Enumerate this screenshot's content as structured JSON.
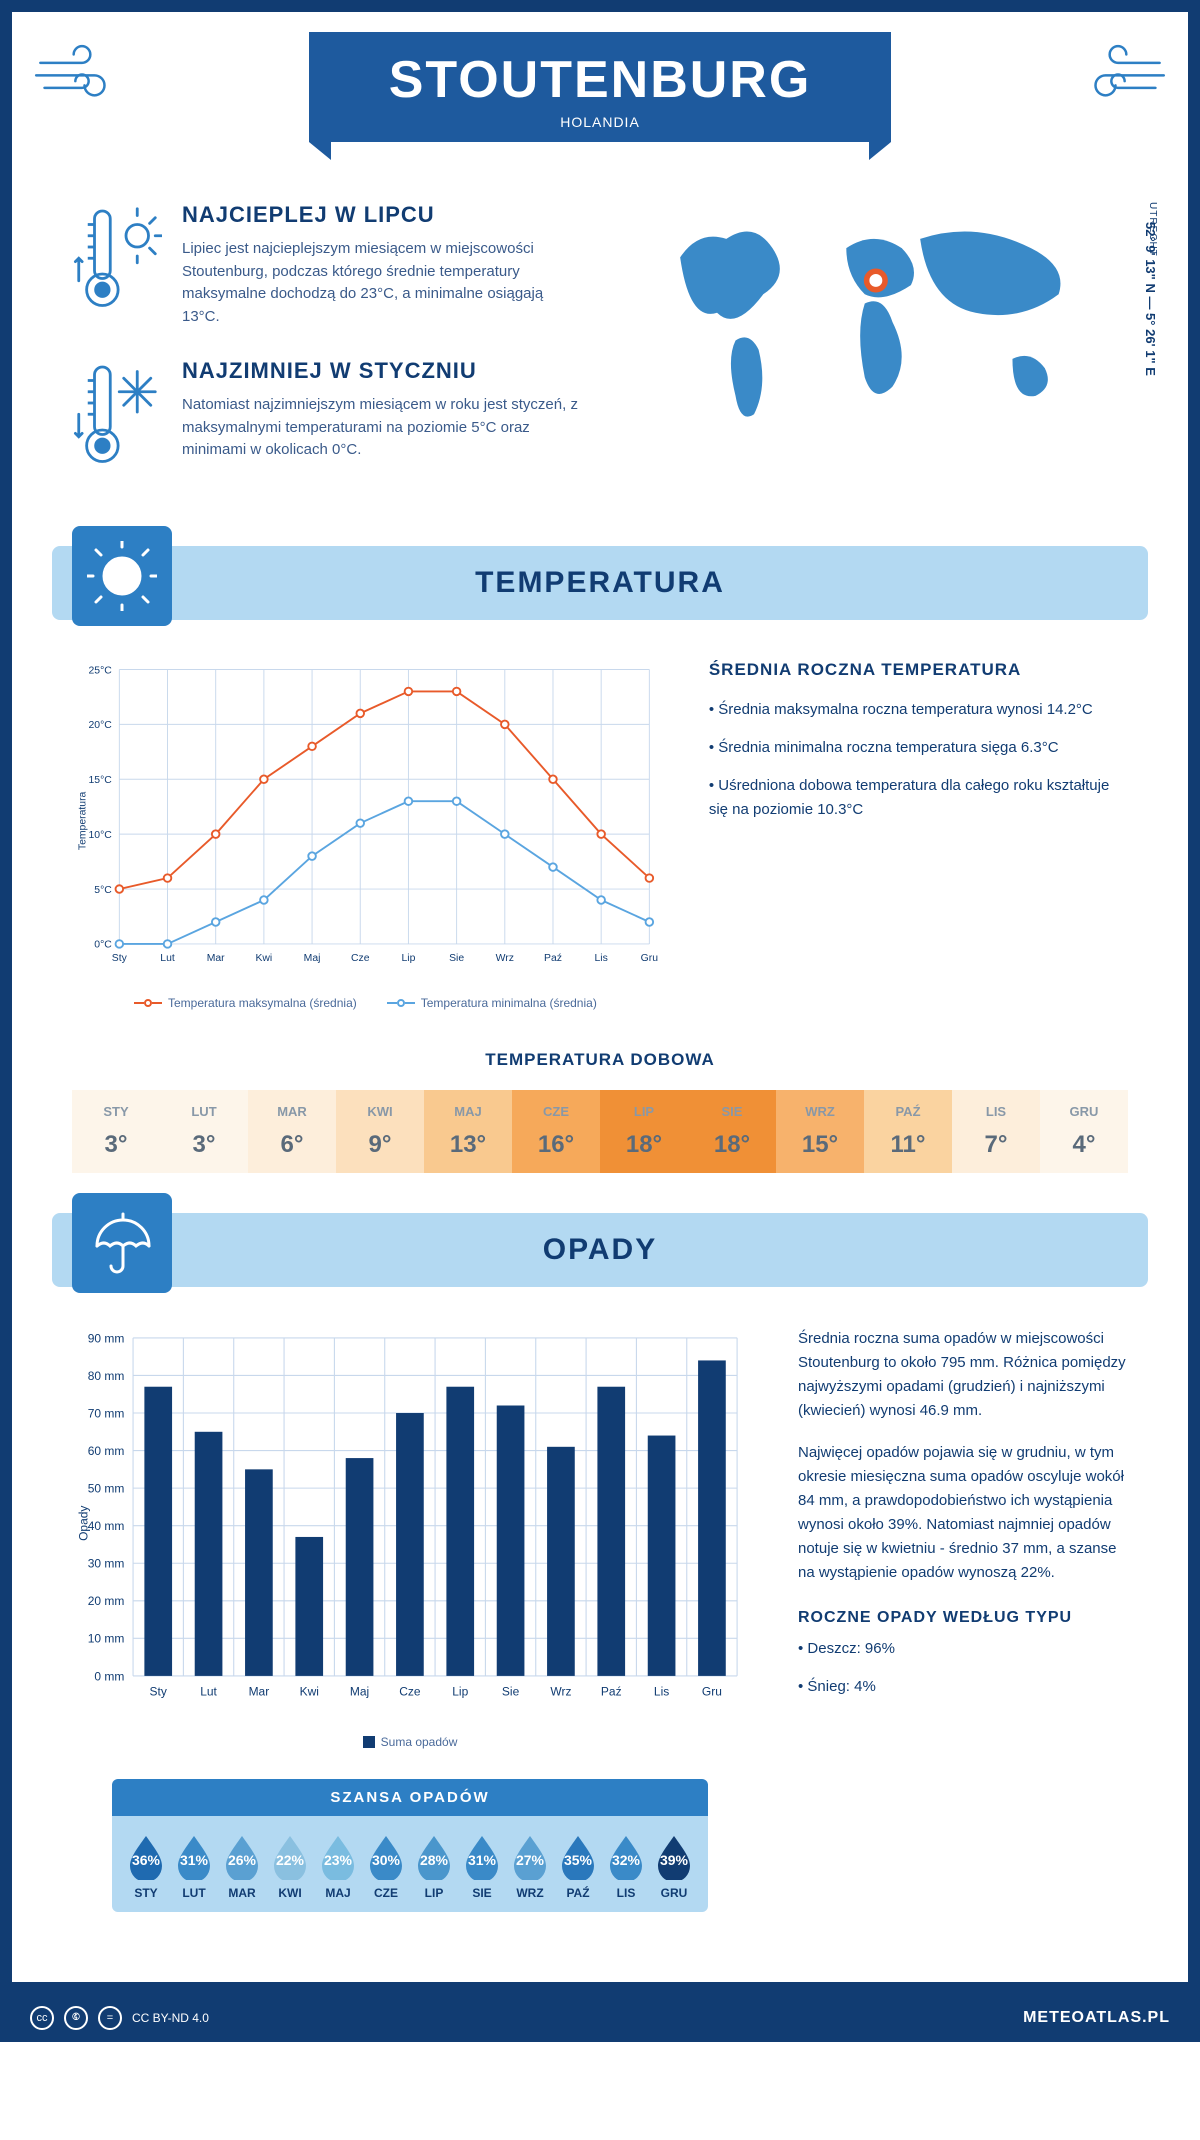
{
  "header": {
    "title": "STOUTENBURG",
    "country": "HOLANDIA",
    "coordinates": "52° 9' 13\" N — 5° 26' 1\" E",
    "region": "UTRECHT"
  },
  "facts": {
    "warm": {
      "title": "NAJCIEPLEJ W LIPCU",
      "text": "Lipiec jest najcieplejszym miesiącem w miejscowości Stoutenburg, podczas którego średnie temperatury maksymalne dochodzą do 23°C, a minimalne osiągają 13°C."
    },
    "cold": {
      "title": "NAJZIMNIEJ W STYCZNIU",
      "text": "Natomiast najzimniejszym miesiącem w roku jest styczeń, z maksymalnymi temperaturami na poziomie 5°C oraz minimami w okolicach 0°C."
    }
  },
  "temperature_section": {
    "title": "TEMPERATURA",
    "info_title": "ŚREDNIA ROCZNA TEMPERATURA",
    "info_points": [
      "• Średnia maksymalna roczna temperatura wynosi 14.2°C",
      "• Średnia minimalna roczna temperatura sięga 6.3°C",
      "• Uśredniona dobowa temperatura dla całego roku kształtuje się na poziomie 10.3°C"
    ],
    "chart": {
      "type": "line",
      "ylabel": "Temperatura",
      "months": [
        "Sty",
        "Lut",
        "Mar",
        "Kwi",
        "Maj",
        "Cze",
        "Lip",
        "Sie",
        "Wrz",
        "Paź",
        "Lis",
        "Gru"
      ],
      "ylim": [
        0,
        25
      ],
      "ytick_step": 5,
      "ytick_labels": [
        "0°C",
        "5°C",
        "10°C",
        "15°C",
        "20°C",
        "25°C"
      ],
      "series": [
        {
          "name": "Temperatura maksymalna (średnia)",
          "color": "#e85a2a",
          "values": [
            5,
            6,
            10,
            15,
            18,
            21,
            23,
            23,
            20,
            15,
            10,
            6
          ]
        },
        {
          "name": "Temperatura minimalna (średnia)",
          "color": "#5aa5e0",
          "values": [
            0,
            0,
            2,
            4,
            8,
            11,
            13,
            13,
            10,
            7,
            4,
            2
          ]
        }
      ],
      "grid_color": "#c8d8ec",
      "background": "#ffffff"
    },
    "daily": {
      "title": "TEMPERATURA DOBOWA",
      "months": [
        "STY",
        "LUT",
        "MAR",
        "KWI",
        "MAJ",
        "CZE",
        "LIP",
        "SIE",
        "WRZ",
        "PAŹ",
        "LIS",
        "GRU"
      ],
      "values": [
        "3°",
        "3°",
        "6°",
        "9°",
        "13°",
        "16°",
        "18°",
        "18°",
        "15°",
        "11°",
        "7°",
        "4°"
      ],
      "colors": [
        "#fdf5ea",
        "#fdf5ea",
        "#fdeedb",
        "#fce0bd",
        "#f9c98f",
        "#f6a95a",
        "#f09036",
        "#f09036",
        "#f7b26c",
        "#fad3a0",
        "#fdeedb",
        "#fdf5ea"
      ]
    }
  },
  "precipitation_section": {
    "title": "OPADY",
    "chart": {
      "type": "bar",
      "ylabel": "Opady",
      "months": [
        "Sty",
        "Lut",
        "Mar",
        "Kwi",
        "Maj",
        "Cze",
        "Lip",
        "Sie",
        "Wrz",
        "Paź",
        "Lis",
        "Gru"
      ],
      "ylim": [
        0,
        90
      ],
      "ytick_step": 10,
      "ytick_labels": [
        "0 mm",
        "10 mm",
        "20 mm",
        "30 mm",
        "40 mm",
        "50 mm",
        "60 mm",
        "70 mm",
        "80 mm",
        "90 mm"
      ],
      "values": [
        77,
        65,
        55,
        37,
        58,
        70,
        77,
        72,
        61,
        77,
        64,
        84
      ],
      "bar_color": "#113c72",
      "legend": "Suma opadów",
      "grid_color": "#c8d8ec"
    },
    "info_paragraphs": [
      "Średnia roczna suma opadów w miejscowości Stoutenburg to około 795 mm. Różnica pomiędzy najwyższymi opadami (grudzień) i najniższymi (kwiecień) wynosi 46.9 mm.",
      "Najwięcej opadów pojawia się w grudniu, w tym okresie miesięczna suma opadów oscyluje wokół 84 mm, a prawdopodobieństwo ich wystąpienia wynosi około 39%. Natomiast najmniej opadów notuje się w kwietniu - średnio 37 mm, a szanse na wystąpienie opadów wynoszą 22%."
    ],
    "chance": {
      "title": "SZANSA OPADÓW",
      "months": [
        "STY",
        "LUT",
        "MAR",
        "KWI",
        "MAJ",
        "CZE",
        "LIP",
        "SIE",
        "WRZ",
        "PAŹ",
        "LIS",
        "GRU"
      ],
      "values": [
        "36%",
        "31%",
        "26%",
        "22%",
        "23%",
        "30%",
        "28%",
        "31%",
        "27%",
        "35%",
        "32%",
        "39%"
      ],
      "colors": [
        "#1f6ab0",
        "#3a8ac8",
        "#5aa0d2",
        "#8ac0e0",
        "#7abce0",
        "#3a8ac8",
        "#4a96cc",
        "#3a8ac8",
        "#5aa0d2",
        "#2a78bc",
        "#3a8ac8",
        "#113c72"
      ]
    },
    "by_type": {
      "title": "ROCZNE OPADY WEDŁUG TYPU",
      "items": [
        "• Deszcz: 96%",
        "• Śnieg: 4%"
      ]
    }
  },
  "footer": {
    "license": "CC BY-ND 4.0",
    "site": "METEOATLAS.PL"
  }
}
